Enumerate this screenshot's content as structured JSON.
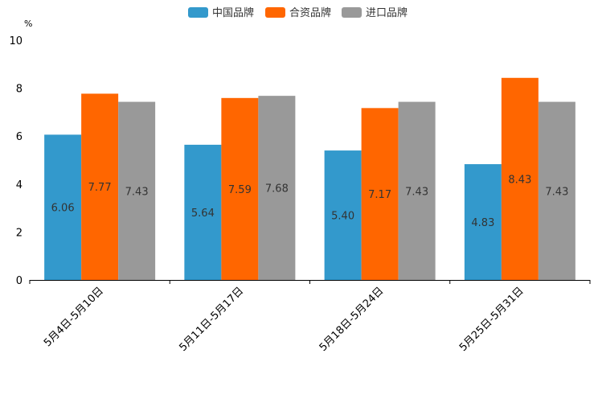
{
  "chart_data": {
    "type": "bar",
    "title": "",
    "xlabel": "",
    "ylabel": "",
    "unit": "%",
    "ylim": [
      0,
      10
    ],
    "yticks": [
      "0",
      "2",
      "4",
      "6",
      "8",
      "10"
    ],
    "categories": [
      "5月4日-5月10日",
      "5月11日-5月17日",
      "5月18日-5月24日",
      "5月25日-5月31日"
    ],
    "series": [
      {
        "name": "中国品牌",
        "color": "#3399cc",
        "values": [
          6.06,
          5.64,
          5.4,
          4.83
        ],
        "labels": [
          "6.06",
          "5.64",
          "5.40",
          "4.83"
        ]
      },
      {
        "name": "合资品牌",
        "color": "#ff6600",
        "values": [
          7.77,
          7.59,
          7.17,
          8.43
        ],
        "labels": [
          "7.77",
          "7.59",
          "7.17",
          "8.43"
        ]
      },
      {
        "name": "进口品牌",
        "color": "#999999",
        "values": [
          7.43,
          7.68,
          7.43,
          7.43
        ],
        "labels": [
          "7.43",
          "7.68",
          "7.43",
          "7.43"
        ]
      }
    ],
    "legend_position": "top-center",
    "grid": false
  }
}
